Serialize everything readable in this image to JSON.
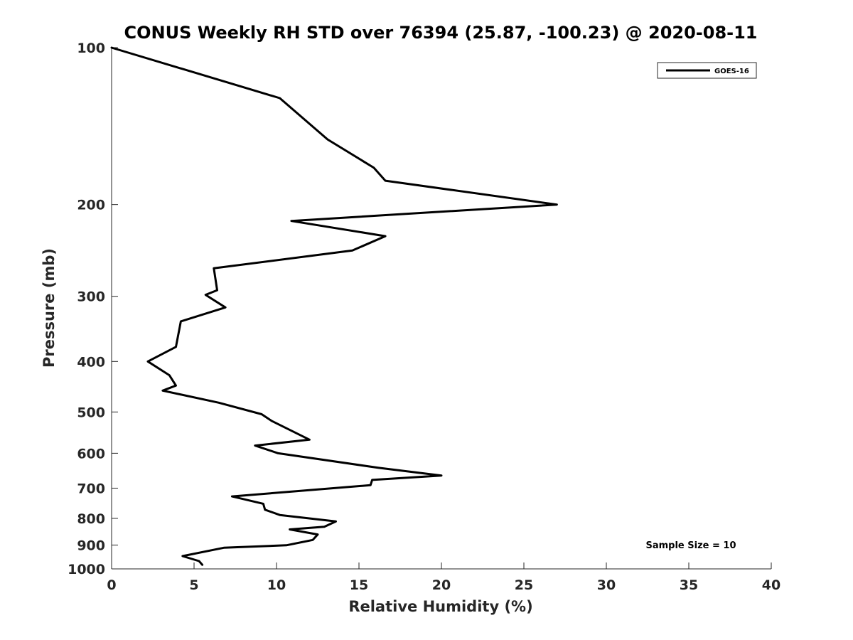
{
  "chart_data": {
    "type": "line",
    "title": "CONUS Weekly RH STD over 76394 (25.87, -100.23) @ 2020-08-11",
    "xlabel": "Relative Humidity (%)",
    "ylabel": "Pressure (mb)",
    "xlim": [
      0,
      40
    ],
    "ylim": [
      100,
      1000
    ],
    "y_scale": "log",
    "y_reversed": true,
    "x_ticks": [
      0,
      5,
      10,
      15,
      20,
      25,
      30,
      35,
      40
    ],
    "y_ticks": [
      100,
      200,
      300,
      400,
      500,
      600,
      700,
      800,
      900,
      1000
    ],
    "grid": false,
    "legend_position": "top-right",
    "series": [
      {
        "name": "GOES-16",
        "color": "#000000",
        "x": [
          0,
          10.2,
          13.1,
          15.9,
          16.6,
          27.0,
          10.9,
          16.6,
          14.6,
          6.2,
          6.4,
          5.7,
          6.9,
          4.2,
          3.9,
          2.2,
          3.5,
          3.9,
          3.1,
          6.5,
          9.1,
          9.7,
          12.0,
          8.7,
          10.1,
          16.2,
          20.0,
          15.8,
          15.7,
          10.6,
          7.3,
          9.2,
          9.3,
          10.2,
          13.6,
          12.9,
          10.8,
          12.5,
          12.2,
          10.6,
          6.8,
          4.3,
          5.3,
          5.5
        ],
        "y": [
          100,
          125,
          150,
          170,
          180,
          200,
          215,
          230,
          245,
          265,
          292,
          298,
          315,
          335,
          375,
          400,
          425,
          445,
          455,
          480,
          505,
          520,
          565,
          580,
          600,
          640,
          662,
          675,
          691,
          712,
          726,
          750,
          770,
          788,
          811,
          830,
          840,
          859,
          880,
          901,
          911,
          945,
          966,
          982
        ]
      }
    ],
    "annotations": [
      "Sample Size = 10"
    ]
  }
}
